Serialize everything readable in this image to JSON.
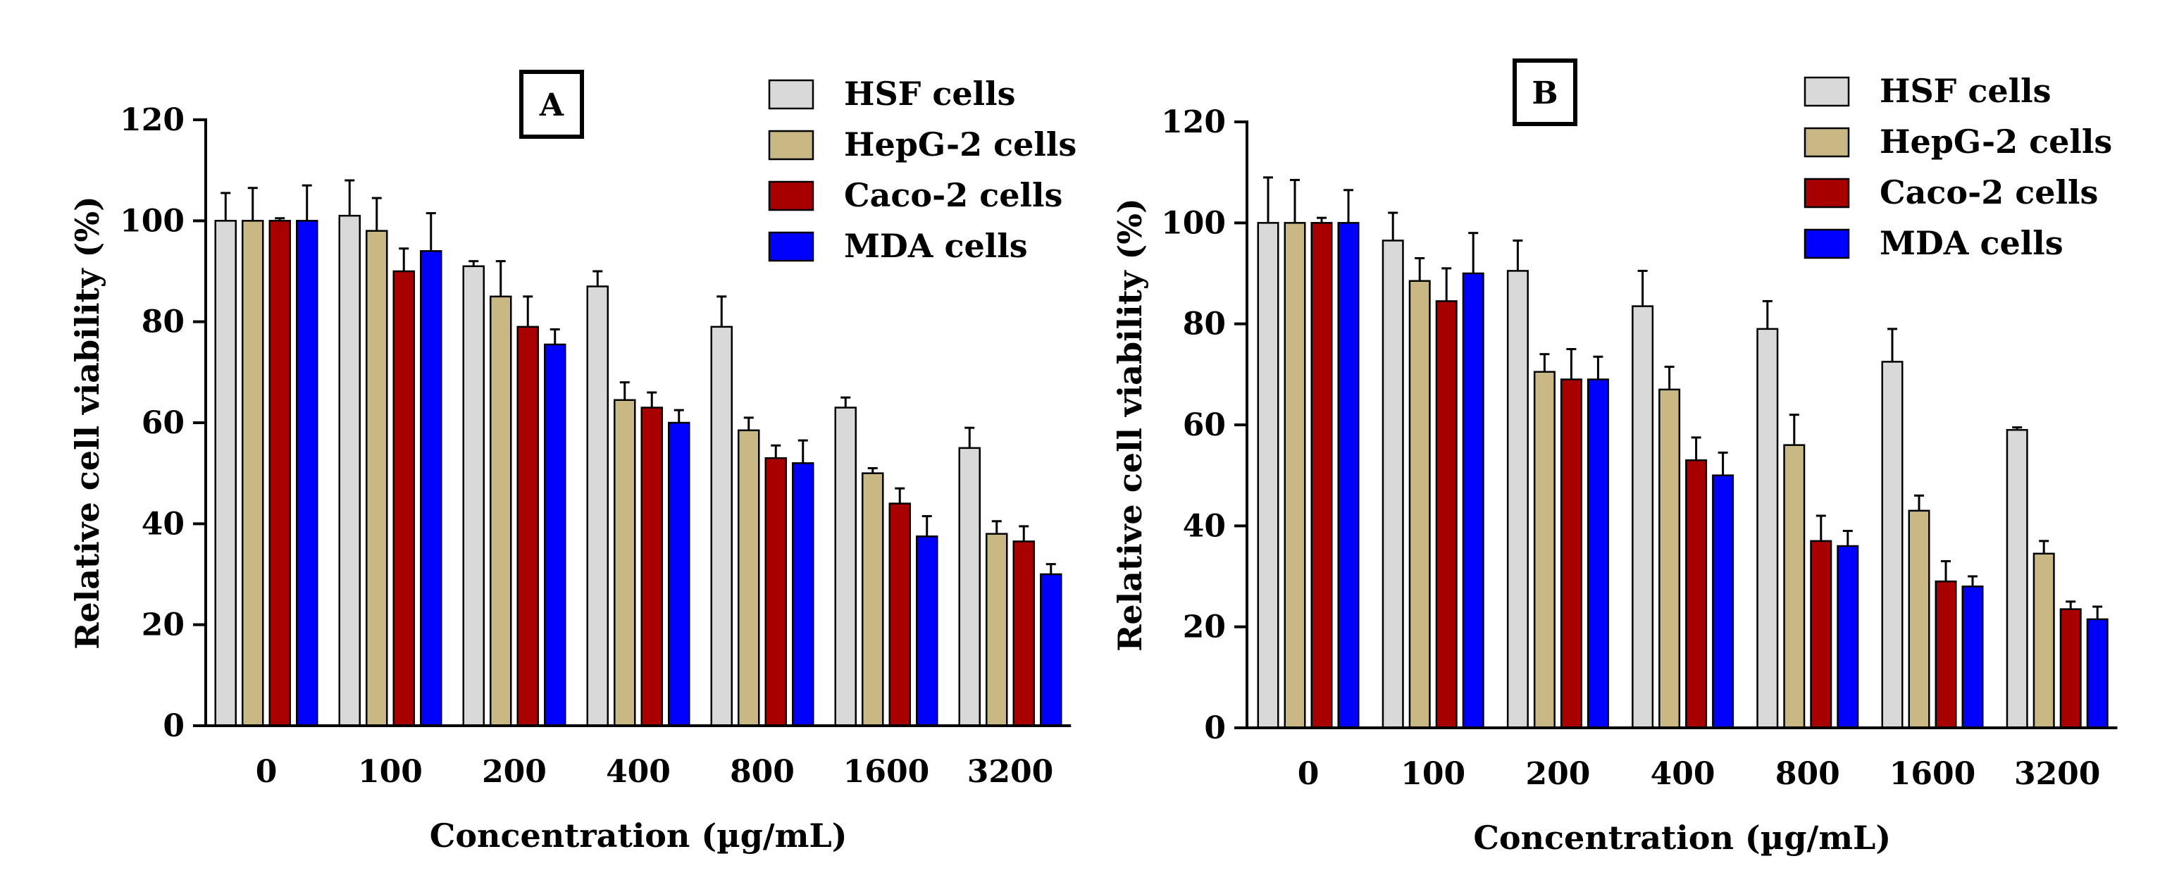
{
  "colors": {
    "HSF cells": "#d9d9d9",
    "HepG-2 cells": "#c9b883",
    "Caco-2 cells": "#a80000",
    "MDA cells": "#0000ff"
  },
  "chart_data": [
    {
      "type": "bar",
      "panel_label": "A",
      "title": "",
      "xlabel": "Concentration (µg/mL)",
      "ylabel": "Relative cell viability (%)",
      "ylim": [
        0,
        120
      ],
      "yticks": [
        0,
        20,
        40,
        60,
        80,
        100,
        120
      ],
      "categories": [
        "0",
        "100",
        "200",
        "400",
        "800",
        "1600",
        "3200"
      ],
      "legend": [
        "HSF cells",
        "HepG-2 cells",
        "Caco-2 cells",
        "MDA cells"
      ],
      "legend_position": "top-right",
      "series": [
        {
          "name": "HSF cells",
          "values": [
            100,
            101,
            91,
            87,
            79,
            63,
            55
          ],
          "errors": [
            5.5,
            7,
            1,
            3,
            6,
            2,
            4
          ]
        },
        {
          "name": "HepG-2 cells",
          "values": [
            100,
            98,
            85,
            64.5,
            58.5,
            50,
            38
          ],
          "errors": [
            6.5,
            6.5,
            7,
            3.5,
            2.5,
            1,
            2.5
          ]
        },
        {
          "name": "Caco-2 cells",
          "values": [
            100,
            90,
            79,
            63,
            53,
            44,
            36.5
          ],
          "errors": [
            0.5,
            4.5,
            6,
            3,
            2.5,
            3,
            3
          ]
        },
        {
          "name": "MDA cells",
          "values": [
            100,
            94,
            75.5,
            60,
            52,
            37.5,
            30
          ],
          "errors": [
            7,
            7.5,
            3,
            2.5,
            4.5,
            4,
            2
          ]
        }
      ]
    },
    {
      "type": "bar",
      "panel_label": "B",
      "title": "",
      "xlabel": "Concentration (µg/mL)",
      "ylabel": "Relative cell viability (%)",
      "ylim": [
        0,
        120
      ],
      "yticks": [
        0,
        20,
        40,
        60,
        80,
        100,
        120
      ],
      "categories": [
        "0",
        "100",
        "200",
        "400",
        "800",
        "1600",
        "3200"
      ],
      "legend": [
        "HSF cells",
        "HepG-2 cells",
        "Caco-2 cells",
        "MDA cells"
      ],
      "legend_position": "top-right",
      "series": [
        {
          "name": "HSF cells",
          "values": [
            100,
            96.5,
            90.5,
            83.5,
            79,
            72.5,
            59
          ],
          "errors": [
            9,
            5.5,
            6,
            7,
            5.5,
            6.5,
            0.5
          ]
        },
        {
          "name": "HepG-2 cells",
          "values": [
            100,
            88.5,
            70.5,
            67,
            56,
            43,
            34.5
          ],
          "errors": [
            8.5,
            4.5,
            3.5,
            4.5,
            6,
            3,
            2.5
          ]
        },
        {
          "name": "Caco-2 cells",
          "values": [
            100,
            84.5,
            69,
            53,
            37,
            29,
            23.5
          ],
          "errors": [
            1,
            6.5,
            6,
            4.5,
            5,
            4,
            1.5
          ]
        },
        {
          "name": "MDA cells",
          "values": [
            100,
            90,
            69,
            50,
            36,
            28,
            21.5
          ],
          "errors": [
            6.5,
            8,
            4.5,
            4.5,
            3,
            2,
            2.5
          ]
        }
      ]
    }
  ]
}
